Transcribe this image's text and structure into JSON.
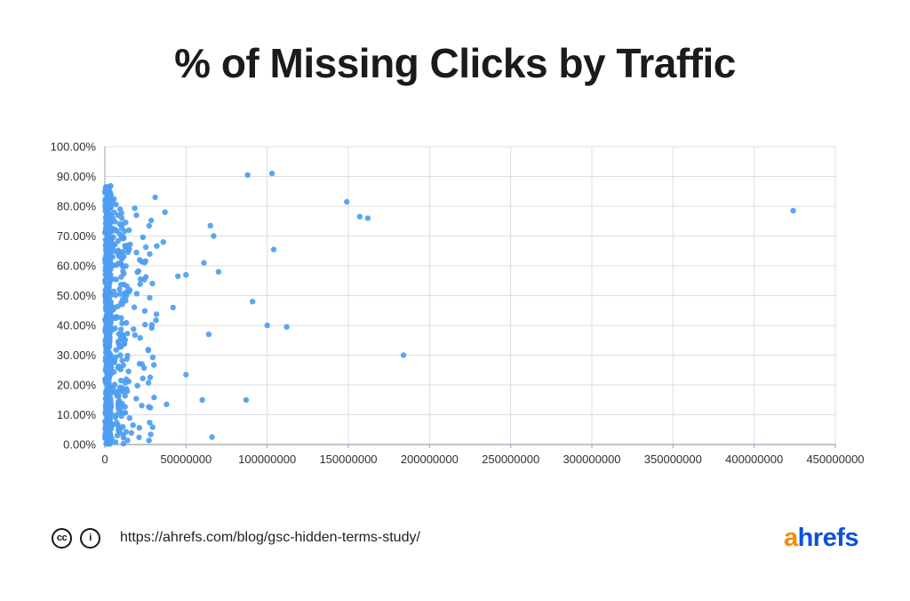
{
  "title": "% of Missing Clicks by Traffic",
  "footer": {
    "cc_label": "cc",
    "info_label": "i",
    "url": "https://ahrefs.com/blog/gsc-hidden-terms-study/",
    "logo_prefix": "a",
    "logo_suffix": "hrefs",
    "logo_prefix_color": "#ff8800",
    "logo_suffix_color": "#0d50e0"
  },
  "chart_data": {
    "type": "scatter",
    "title": "% of Missing Clicks by Traffic",
    "xlabel": "",
    "ylabel": "",
    "xlim": [
      0,
      450000000
    ],
    "ylim": [
      0,
      100
    ],
    "grid": true,
    "legend": false,
    "point_color": "#4d9df2",
    "grid_color": "#dcdce8",
    "axis_color": "#9aa0b0",
    "label_color": "#2e2e38",
    "x_ticks": [
      0,
      50000000,
      100000000,
      150000000,
      200000000,
      250000000,
      300000000,
      350000000,
      400000000,
      450000000
    ],
    "x_tick_labels": [
      "0",
      "50000000",
      "100000000",
      "150000000",
      "200000000",
      "250000000",
      "300000000",
      "350000000",
      "400000000",
      "450000000"
    ],
    "y_ticks": [
      0,
      10,
      20,
      30,
      40,
      50,
      60,
      70,
      80,
      90,
      100
    ],
    "y_tick_labels": [
      "0.00%",
      "10.00%",
      "20.00%",
      "30.00%",
      "40.00%",
      "50.00%",
      "60.00%",
      "70.00%",
      "80.00%",
      "90.00%",
      "100.00%"
    ],
    "points": [
      [
        31000000,
        83
      ],
      [
        37000000,
        78
      ],
      [
        36000000,
        68
      ],
      [
        42000000,
        46
      ],
      [
        45000000,
        56.5
      ],
      [
        50000000,
        57
      ],
      [
        50000000,
        23.5
      ],
      [
        38000000,
        13.5
      ],
      [
        61000000,
        61
      ],
      [
        65000000,
        73.5
      ],
      [
        67000000,
        70
      ],
      [
        64000000,
        37
      ],
      [
        66000000,
        2.5
      ],
      [
        70000000,
        58
      ],
      [
        60000000,
        15
      ],
      [
        88000000,
        90.5
      ],
      [
        103000000,
        91
      ],
      [
        104000000,
        65.5
      ],
      [
        91000000,
        48
      ],
      [
        100000000,
        40
      ],
      [
        112000000,
        39.5
      ],
      [
        87000000,
        15
      ],
      [
        149000000,
        81.5
      ],
      [
        157000000,
        76.5
      ],
      [
        162000000,
        76
      ],
      [
        184000000,
        30
      ],
      [
        424000000,
        78.5
      ]
    ],
    "dense_bands": [
      {
        "seed": 7,
        "count": 560,
        "x_range": [
          120000,
          3800000
        ],
        "y_range": [
          0,
          87
        ]
      },
      {
        "seed": 21,
        "count": 170,
        "x_range": [
          3800000,
          15000000
        ],
        "y_range": [
          0,
          83
        ]
      },
      {
        "seed": 99,
        "count": 60,
        "x_range": [
          15000000,
          32000000
        ],
        "y_range": [
          0.5,
          80
        ]
      }
    ]
  }
}
